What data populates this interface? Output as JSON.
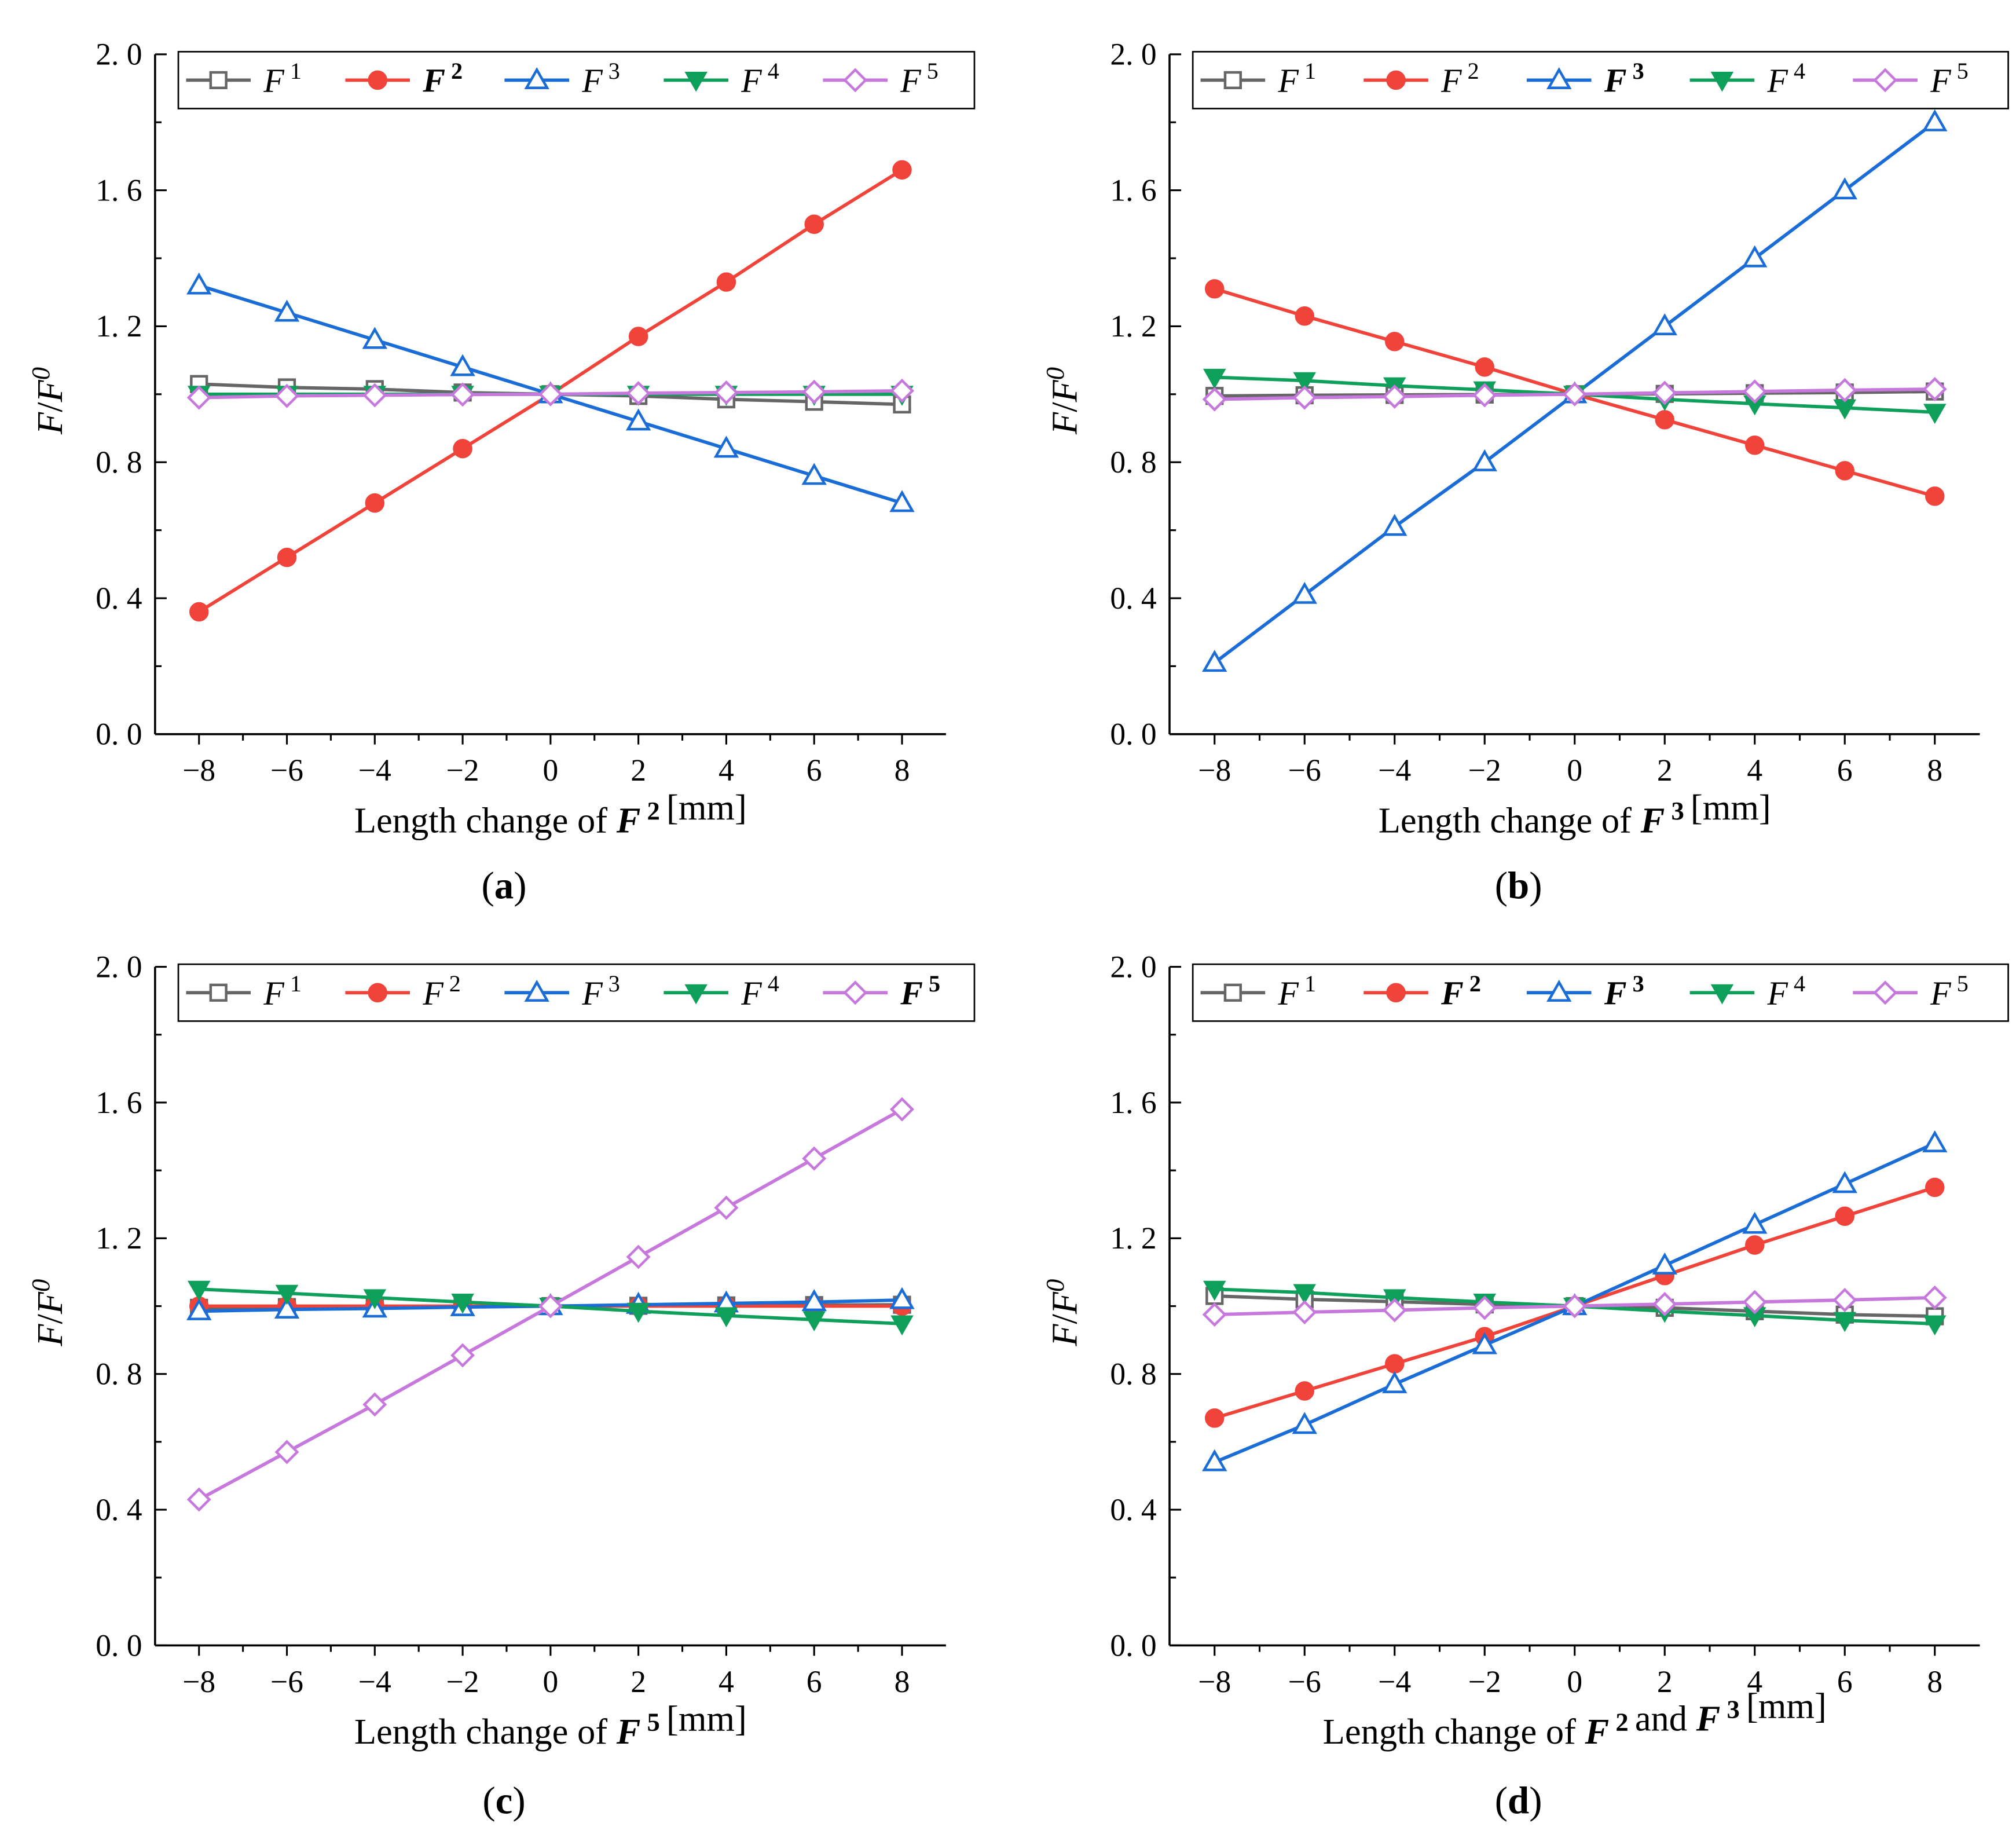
{
  "colors": {
    "F1": "#666666",
    "F2": "#f0433a",
    "F3": "#1a6dd6",
    "F4": "#0ea05a",
    "F5": "#c678dd",
    "axis": "#000000"
  },
  "chart_data": [
    {
      "panel": "(a)",
      "type": "line",
      "xlabel": "Length change of F 2 [mm]",
      "xlabel_parts": [
        "Length change of ",
        "F",
        "2",
        "[mm]"
      ],
      "ylabel": "F/F0",
      "xlim": [
        -9,
        9
      ],
      "ylim": [
        0.0,
        2.0
      ],
      "x": [
        -8,
        -6,
        -4,
        -2,
        0,
        2,
        4,
        6,
        8
      ],
      "x_ticks": [
        "−8",
        "−6",
        "−4",
        "−2",
        "0",
        "2",
        "4",
        "6",
        "8"
      ],
      "y_ticks": [
        "0. 0",
        "0. 4",
        "0. 8",
        "1. 2",
        "1. 6",
        "2. 0"
      ],
      "bold_series": [
        "F2"
      ],
      "series": [
        {
          "name": "F1",
          "values": [
            1.03,
            1.02,
            1.015,
            1.005,
            1.0,
            0.995,
            0.985,
            0.978,
            0.97
          ]
        },
        {
          "name": "F2",
          "values": [
            0.36,
            0.52,
            0.68,
            0.84,
            1.0,
            1.17,
            1.33,
            1.5,
            1.66
          ]
        },
        {
          "name": "F3",
          "values": [
            1.32,
            1.24,
            1.16,
            1.08,
            1.0,
            0.92,
            0.84,
            0.76,
            0.68
          ]
        },
        {
          "name": "F4",
          "values": [
            1.0,
            1.0,
            1.0,
            1.0,
            1.0,
            1.0,
            1.0,
            1.0,
            1.0
          ]
        },
        {
          "name": "F5",
          "values": [
            0.99,
            0.995,
            0.997,
            0.999,
            1.0,
            1.003,
            1.005,
            1.007,
            1.01
          ]
        }
      ]
    },
    {
      "panel": "(b)",
      "type": "line",
      "xlabel": "Length change of F 3 [mm]",
      "xlabel_parts": [
        "Length change of ",
        "F",
        "3",
        "[mm]"
      ],
      "ylabel": "F/F0",
      "xlim": [
        -9,
        9
      ],
      "ylim": [
        0.0,
        2.0
      ],
      "x": [
        -8,
        -6,
        -4,
        -2,
        0,
        2,
        4,
        6,
        8
      ],
      "x_ticks": [
        "−8",
        "−6",
        "−4",
        "−2",
        "0",
        "2",
        "4",
        "6",
        "8"
      ],
      "y_ticks": [
        "0. 0",
        "0. 4",
        "0. 8",
        "1. 2",
        "1. 6",
        "2. 0"
      ],
      "bold_series": [
        "F3"
      ],
      "series": [
        {
          "name": "F1",
          "values": [
            0.995,
            0.997,
            0.998,
            0.999,
            1.0,
            1.001,
            1.003,
            1.005,
            1.008
          ]
        },
        {
          "name": "F2",
          "values": [
            1.31,
            1.23,
            1.155,
            1.08,
            1.0,
            0.925,
            0.85,
            0.775,
            0.7
          ]
        },
        {
          "name": "F3",
          "values": [
            0.21,
            0.41,
            0.61,
            0.8,
            1.0,
            1.2,
            1.4,
            1.6,
            1.8
          ]
        },
        {
          "name": "F4",
          "values": [
            1.05,
            1.04,
            1.025,
            1.013,
            1.0,
            0.985,
            0.972,
            0.96,
            0.947
          ]
        },
        {
          "name": "F5",
          "values": [
            0.985,
            0.99,
            0.993,
            0.997,
            1.0,
            1.004,
            1.008,
            1.012,
            1.015
          ]
        }
      ]
    },
    {
      "panel": "(c)",
      "type": "line",
      "xlabel": "Length change of F 5 [mm]",
      "xlabel_parts": [
        "Length change of ",
        "F",
        "5",
        "[mm]"
      ],
      "ylabel": "F/F0",
      "xlim": [
        -9,
        9
      ],
      "ylim": [
        0.0,
        2.0
      ],
      "x": [
        -8,
        -6,
        -4,
        -2,
        0,
        2,
        4,
        6,
        8
      ],
      "x_ticks": [
        "−8",
        "−6",
        "−4",
        "−2",
        "0",
        "2",
        "4",
        "6",
        "8"
      ],
      "y_ticks": [
        "0. 0",
        "0. 4",
        "0. 8",
        "1. 2",
        "1. 6",
        "2. 0"
      ],
      "bold_series": [
        "F5"
      ],
      "series": [
        {
          "name": "F1",
          "values": [
            0.995,
            0.997,
            0.998,
            0.999,
            1.0,
            1.001,
            1.002,
            1.003,
            1.004
          ]
        },
        {
          "name": "F2",
          "values": [
            1.0,
            1.0,
            1.0,
            1.0,
            1.0,
            1.0,
            1.0,
            1.0,
            1.0
          ]
        },
        {
          "name": "F3",
          "values": [
            0.985,
            0.99,
            0.993,
            0.997,
            1.0,
            1.004,
            1.008,
            1.012,
            1.018
          ]
        },
        {
          "name": "F4",
          "values": [
            1.05,
            1.038,
            1.025,
            1.012,
            1.0,
            0.985,
            0.972,
            0.96,
            0.948
          ]
        },
        {
          "name": "F5",
          "values": [
            0.43,
            0.57,
            0.71,
            0.855,
            1.0,
            1.145,
            1.29,
            1.435,
            1.58
          ]
        }
      ]
    },
    {
      "panel": "(d)",
      "type": "line",
      "xlabel": "Length change of F 2 and F 3 [mm]",
      "xlabel_parts": [
        "Length change of ",
        "F",
        "2",
        " and ",
        "F",
        "3",
        "[mm]"
      ],
      "ylabel": "F/F0",
      "xlim": [
        -9,
        9
      ],
      "ylim": [
        0.0,
        2.0
      ],
      "x": [
        -8,
        -6,
        -4,
        -2,
        0,
        2,
        4,
        6,
        8
      ],
      "x_ticks": [
        "−8",
        "−6",
        "−4",
        "−2",
        "0",
        "2",
        "4",
        "6",
        "8"
      ],
      "y_ticks": [
        "0. 0",
        "0. 4",
        "0. 8",
        "1. 2",
        "1. 6",
        "2. 0"
      ],
      "bold_series": [
        "F2",
        "F3"
      ],
      "series": [
        {
          "name": "F1",
          "values": [
            1.03,
            1.02,
            1.013,
            1.005,
            1.0,
            0.995,
            0.985,
            0.975,
            0.97
          ]
        },
        {
          "name": "F2",
          "values": [
            0.67,
            0.75,
            0.83,
            0.91,
            1.0,
            1.09,
            1.18,
            1.265,
            1.35
          ]
        },
        {
          "name": "F3",
          "values": [
            0.54,
            0.65,
            0.77,
            0.885,
            1.0,
            1.12,
            1.24,
            1.36,
            1.48
          ]
        },
        {
          "name": "F4",
          "values": [
            1.05,
            1.04,
            1.025,
            1.012,
            1.0,
            0.985,
            0.972,
            0.958,
            0.948
          ]
        },
        {
          "name": "F5",
          "values": [
            0.975,
            0.982,
            0.988,
            0.995,
            1.0,
            1.006,
            1.012,
            1.018,
            1.025
          ]
        }
      ]
    }
  ],
  "legend": [
    {
      "name": "F1",
      "label": "F",
      "sup": "1",
      "marker": "square"
    },
    {
      "name": "F2",
      "label": "F",
      "sup": "2",
      "marker": "circle"
    },
    {
      "name": "F3",
      "label": "F",
      "sup": "3",
      "marker": "triangle-up"
    },
    {
      "name": "F4",
      "label": "F",
      "sup": "4",
      "marker": "triangle-down"
    },
    {
      "name": "F5",
      "label": "F",
      "sup": "5",
      "marker": "diamond"
    }
  ]
}
